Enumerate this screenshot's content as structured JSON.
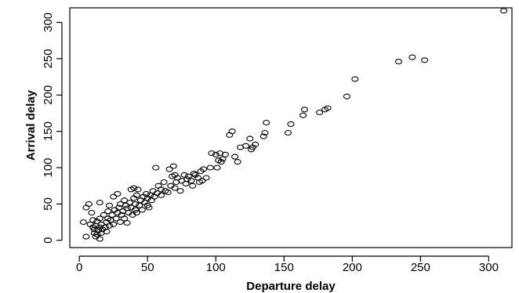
{
  "chart_data": {
    "type": "scatter",
    "title": "",
    "xlabel": "Departure delay",
    "ylabel": "Arrival delay",
    "xlim": [
      -7,
      317
    ],
    "ylim": [
      -10,
      320
    ],
    "xticks": [
      0,
      50,
      100,
      150,
      200,
      250,
      300
    ],
    "yticks": [
      0,
      50,
      100,
      150,
      200,
      250,
      300
    ],
    "grid": false,
    "marker": "open-circle",
    "marker_color": "#000000",
    "points": [
      [
        3,
        25
      ],
      [
        5,
        5
      ],
      [
        5,
        45
      ],
      [
        7,
        50
      ],
      [
        8,
        22
      ],
      [
        9,
        38
      ],
      [
        10,
        18
      ],
      [
        10,
        28
      ],
      [
        11,
        10
      ],
      [
        11,
        15
      ],
      [
        12,
        5
      ],
      [
        12,
        20
      ],
      [
        13,
        26
      ],
      [
        13,
        8
      ],
      [
        14,
        14
      ],
      [
        15,
        2
      ],
      [
        15,
        18
      ],
      [
        15,
        30
      ],
      [
        15,
        52
      ],
      [
        16,
        10
      ],
      [
        16,
        22
      ],
      [
        17,
        15
      ],
      [
        18,
        35
      ],
      [
        19,
        18
      ],
      [
        20,
        25
      ],
      [
        20,
        12
      ],
      [
        21,
        40
      ],
      [
        21,
        30
      ],
      [
        22,
        20
      ],
      [
        22,
        48
      ],
      [
        23,
        28
      ],
      [
        24,
        35
      ],
      [
        25,
        60
      ],
      [
        25,
        22
      ],
      [
        26,
        42
      ],
      [
        27,
        30
      ],
      [
        28,
        64
      ],
      [
        28,
        38
      ],
      [
        29,
        45
      ],
      [
        30,
        50
      ],
      [
        30,
        25
      ],
      [
        31,
        35
      ],
      [
        32,
        40
      ],
      [
        33,
        55
      ],
      [
        33,
        30
      ],
      [
        34,
        48
      ],
      [
        35,
        24
      ],
      [
        35,
        44
      ],
      [
        36,
        38
      ],
      [
        37,
        52
      ],
      [
        38,
        45
      ],
      [
        38,
        70
      ],
      [
        39,
        35
      ],
      [
        40,
        72
      ],
      [
        40,
        58
      ],
      [
        41,
        42
      ],
      [
        41,
        50
      ],
      [
        42,
        62
      ],
      [
        42,
        38
      ],
      [
        43,
        70
      ],
      [
        44,
        48
      ],
      [
        45,
        55
      ],
      [
        46,
        42
      ],
      [
        47,
        60
      ],
      [
        48,
        52
      ],
      [
        49,
        64
      ],
      [
        50,
        58
      ],
      [
        50,
        48
      ],
      [
        51,
        45
      ],
      [
        52,
        62
      ],
      [
        53,
        55
      ],
      [
        54,
        68
      ],
      [
        55,
        60
      ],
      [
        56,
        100
      ],
      [
        57,
        65
      ],
      [
        58,
        75
      ],
      [
        60,
        70
      ],
      [
        60,
        62
      ],
      [
        62,
        80
      ],
      [
        63,
        68
      ],
      [
        65,
        66
      ],
      [
        66,
        98
      ],
      [
        67,
        75
      ],
      [
        68,
        88
      ],
      [
        69,
        102
      ],
      [
        70,
        90
      ],
      [
        70,
        72
      ],
      [
        71,
        80
      ],
      [
        72,
        86
      ],
      [
        74,
        68
      ],
      [
        75,
        82
      ],
      [
        77,
        90
      ],
      [
        78,
        78
      ],
      [
        79,
        84
      ],
      [
        80,
        88
      ],
      [
        82,
        82
      ],
      [
        83,
        75
      ],
      [
        84,
        92
      ],
      [
        85,
        90
      ],
      [
        87,
        86
      ],
      [
        88,
        80
      ],
      [
        89,
        95
      ],
      [
        90,
        82
      ],
      [
        91,
        98
      ],
      [
        93,
        86
      ],
      [
        96,
        100
      ],
      [
        97,
        120
      ],
      [
        100,
        118
      ],
      [
        101,
        100
      ],
      [
        102,
        110
      ],
      [
        103,
        120
      ],
      [
        104,
        108
      ],
      [
        105,
        112
      ],
      [
        107,
        118
      ],
      [
        110,
        145
      ],
      [
        112,
        150
      ],
      [
        114,
        115
      ],
      [
        116,
        108
      ],
      [
        118,
        128
      ],
      [
        122,
        130
      ],
      [
        125,
        140
      ],
      [
        126,
        125
      ],
      [
        127,
        128
      ],
      [
        129,
        132
      ],
      [
        135,
        143
      ],
      [
        136,
        148
      ],
      [
        137,
        162
      ],
      [
        153,
        148
      ],
      [
        155,
        160
      ],
      [
        164,
        172
      ],
      [
        165,
        180
      ],
      [
        176,
        176
      ],
      [
        180,
        180
      ],
      [
        182,
        182
      ],
      [
        196,
        198
      ],
      [
        202,
        222
      ],
      [
        234,
        246
      ],
      [
        244,
        252
      ],
      [
        253,
        248
      ],
      [
        311,
        316
      ]
    ]
  }
}
